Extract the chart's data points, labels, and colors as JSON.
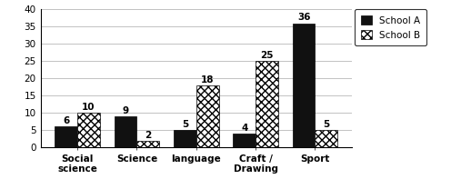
{
  "categories": [
    "Social\nscience",
    "Science",
    "language",
    "Craft /\nDrawing",
    "Sport"
  ],
  "school_a": [
    6,
    9,
    5,
    4,
    36
  ],
  "school_b": [
    10,
    2,
    18,
    25,
    5
  ],
  "school_a_color": "#111111",
  "ylim": [
    0,
    40
  ],
  "yticks": [
    0,
    5,
    10,
    15,
    20,
    25,
    30,
    35,
    40
  ],
  "legend_a": "School A",
  "legend_b": "School B",
  "bar_width": 0.38,
  "tick_fontsize": 7.5,
  "legend_fontsize": 7.5,
  "value_fontsize": 7.5
}
